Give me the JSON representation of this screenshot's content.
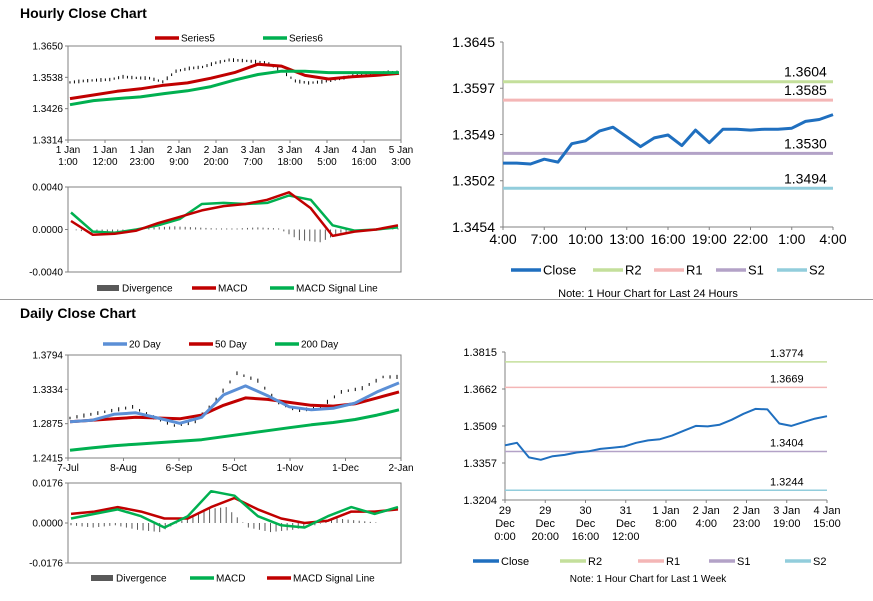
{
  "sections": {
    "hourly_title": "Hourly Close Chart",
    "daily_title": "Daily Close Chart"
  },
  "colors": {
    "series_red": "#c00000",
    "series_green": "#00b050",
    "close_blue": "#1f6fbf",
    "r2_green": "#c4df9b",
    "r1_pink": "#f4b6b6",
    "s1_purple": "#b3a2c7",
    "s2_cyan": "#92cddc",
    "divergence_gray": "#595959",
    "sma20_blue": "#5b8fd6"
  },
  "chart_data": [
    {
      "id": "hourly_price",
      "type": "line",
      "ylim": [
        1.3314,
        1.365
      ],
      "y_ticks": [
        "1.3650",
        "1.3538",
        "1.3426",
        "1.3314"
      ],
      "x_ticks": [
        [
          "1 Jan",
          "1:00"
        ],
        [
          "1 Jan",
          "12:00"
        ],
        [
          "1 Jan",
          "23:00"
        ],
        [
          "2 Jan",
          "9:00"
        ],
        [
          "2 Jan",
          "20:00"
        ],
        [
          "3 Jan",
          "7:00"
        ],
        [
          "3 Jan",
          "18:00"
        ],
        [
          "4 Jan",
          "5:00"
        ],
        [
          "4 Jan",
          "16:00"
        ],
        [
          "5 Jan",
          "3:00"
        ]
      ],
      "series": [
        {
          "name": "Series5",
          "color": "#c00000",
          "values": [
            1.3462,
            1.3475,
            1.3488,
            1.3497,
            1.351,
            1.3518,
            1.3535,
            1.3555,
            1.3585,
            1.3578,
            1.3545,
            1.3532,
            1.354,
            1.3545,
            1.3552
          ]
        },
        {
          "name": "Series6",
          "color": "#00b050",
          "values": [
            1.344,
            1.3455,
            1.3462,
            1.3468,
            1.348,
            1.349,
            1.3505,
            1.3528,
            1.3548,
            1.356,
            1.356,
            1.3555,
            1.3555,
            1.3555,
            1.3555
          ]
        }
      ],
      "candles": [
        1.352,
        1.3525,
        1.3528,
        1.353,
        1.354,
        1.3536,
        1.3535,
        1.3522,
        1.356,
        1.357,
        1.3575,
        1.359,
        1.36,
        1.3598,
        1.3594,
        1.3588,
        1.356,
        1.3525,
        1.3518,
        1.3522,
        1.353,
        1.354,
        1.355,
        1.3552,
        1.3556
      ]
    },
    {
      "id": "hourly_macd",
      "type": "line",
      "ylim": [
        -0.004,
        0.004
      ],
      "y_ticks": [
        "0.0040",
        "0.0000",
        "-0.0040"
      ],
      "series": [
        {
          "name": "Divergence",
          "color": "#595959",
          "values": [
            0.0,
            -0.0003,
            -0.0002,
            -0.0001,
            0.0002,
            0.0003,
            0.0002,
            0.0001,
            0.0001,
            0.0002,
            0.0001,
            -0.001,
            -0.0012,
            -0.0003,
            0.0,
            0.0001
          ]
        },
        {
          "name": "MACD",
          "color": "#c00000",
          "values": [
            0.0008,
            -0.0005,
            -0.0004,
            -0.0001,
            0.0006,
            0.0012,
            0.0018,
            0.0022,
            0.0024,
            0.0028,
            0.0035,
            0.002,
            -0.0006,
            -0.0002,
            0.0,
            0.0004
          ]
        },
        {
          "name": "MACD Signal Line",
          "color": "#00b050",
          "values": [
            0.0016,
            -0.0002,
            -0.0003,
            0.0,
            0.0004,
            0.001,
            0.0024,
            0.0025,
            0.0024,
            0.0025,
            0.0032,
            0.0028,
            0.0004,
            -0.0001,
            0.0,
            0.0002
          ]
        }
      ]
    },
    {
      "id": "hourly_sr",
      "type": "line",
      "ylim": [
        1.3454,
        1.3645
      ],
      "y_ticks": [
        "1.3645",
        "1.3597",
        "1.3549",
        "1.3502",
        "1.3454"
      ],
      "x_ticks": [
        "4:00",
        "7:00",
        "10:00",
        "13:00",
        "16:00",
        "19:00",
        "22:00",
        "1:00",
        "4:00"
      ],
      "levels": [
        {
          "name": "R2",
          "value": 1.3604,
          "label": "1.3604",
          "color": "#c4df9b"
        },
        {
          "name": "R1",
          "value": 1.3585,
          "label": "1.3585",
          "color": "#f4b6b6"
        },
        {
          "name": "S1",
          "value": 1.353,
          "label": "1.3530",
          "color": "#b3a2c7"
        },
        {
          "name": "S2",
          "value": 1.3494,
          "label": "1.3494",
          "color": "#92cddc"
        }
      ],
      "close": [
        1.352,
        1.352,
        1.3519,
        1.3524,
        1.3521,
        1.354,
        1.3543,
        1.3553,
        1.3557,
        1.3547,
        1.3537,
        1.3546,
        1.3549,
        1.3538,
        1.3554,
        1.3541,
        1.3555,
        1.3555,
        1.3554,
        1.3555,
        1.3555,
        1.3556,
        1.3563,
        1.3565,
        1.357
      ]
    },
    {
      "id": "daily_price",
      "type": "line",
      "ylim": [
        1.2415,
        1.3794
      ],
      "y_ticks": [
        "1.3794",
        "1.3334",
        "1.2875",
        "1.2415"
      ],
      "x_ticks": [
        "7-Jul",
        "8-Aug",
        "6-Sep",
        "5-Oct",
        "1-Nov",
        "1-Dec",
        "2-Jan"
      ],
      "series": [
        {
          "name": "20 Day",
          "color": "#5b8fd6",
          "values": [
            1.29,
            1.292,
            1.3,
            1.302,
            1.295,
            1.288,
            1.296,
            1.326,
            1.338,
            1.325,
            1.31,
            1.306,
            1.308,
            1.315,
            1.33,
            1.342
          ]
        },
        {
          "name": "50 Day",
          "color": "#c00000",
          "values": [
            1.29,
            1.292,
            1.294,
            1.296,
            1.295,
            1.294,
            1.299,
            1.312,
            1.322,
            1.32,
            1.316,
            1.312,
            1.311,
            1.314,
            1.322,
            1.33
          ]
        },
        {
          "name": "200 Day",
          "color": "#00b050",
          "values": [
            1.252,
            1.255,
            1.258,
            1.26,
            1.262,
            1.264,
            1.266,
            1.27,
            1.274,
            1.278,
            1.282,
            1.286,
            1.289,
            1.293,
            1.299,
            1.306
          ]
        }
      ],
      "candles": [
        1.295,
        1.3,
        1.305,
        1.31,
        1.296,
        1.285,
        1.29,
        1.32,
        1.355,
        1.345,
        1.315,
        1.305,
        1.31,
        1.33,
        1.335,
        1.35
      ]
    },
    {
      "id": "daily_macd",
      "type": "line",
      "ylim": [
        -0.0176,
        0.0176
      ],
      "y_ticks": [
        "0.0176",
        "0.0000",
        "-0.0176"
      ],
      "series": [
        {
          "name": "Divergence",
          "color": "#595959",
          "values": [
            -0.001,
            -0.002,
            -0.001,
            -0.003,
            -0.004,
            0.001,
            0.006,
            0.007,
            -0.002,
            -0.004,
            -0.003,
            -0.001,
            0.002,
            0.001,
            0.0
          ]
        },
        {
          "name": "MACD",
          "color": "#00b050",
          "values": [
            0.002,
            0.004,
            0.006,
            0.003,
            -0.002,
            0.003,
            0.014,
            0.012,
            0.003,
            -0.001,
            -0.002,
            0.003,
            0.007,
            0.004,
            0.007
          ]
        },
        {
          "name": "MACD Signal Line",
          "color": "#c00000",
          "values": [
            0.004,
            0.005,
            0.007,
            0.005,
            0.002,
            0.002,
            0.007,
            0.011,
            0.006,
            0.002,
            0.0,
            0.001,
            0.005,
            0.005,
            0.006
          ]
        }
      ]
    },
    {
      "id": "daily_sr",
      "type": "line",
      "ylim": [
        1.3204,
        1.3815
      ],
      "y_ticks": [
        "1.3815",
        "1.3662",
        "1.3509",
        "1.3357",
        "1.3204"
      ],
      "x_ticks": [
        [
          "29",
          "Dec",
          "0:00"
        ],
        [
          "29",
          "Dec",
          "20:00"
        ],
        [
          "30",
          "Dec",
          "16:00"
        ],
        [
          "31",
          "Dec",
          "12:00"
        ],
        [
          "1 Jan",
          "8:00"
        ],
        [
          "2 Jan",
          "4:00"
        ],
        [
          "2 Jan",
          "23:00"
        ],
        [
          "3 Jan",
          "19:00"
        ],
        [
          "4 Jan",
          "15:00"
        ]
      ],
      "levels": [
        {
          "name": "R2",
          "value": 1.3774,
          "label": "1.3774",
          "color": "#c4df9b"
        },
        {
          "name": "R1",
          "value": 1.3669,
          "label": "1.3669",
          "color": "#f4b6b6"
        },
        {
          "name": "S1",
          "value": 1.3404,
          "label": "1.3404",
          "color": "#b3a2c7"
        },
        {
          "name": "S2",
          "value": 1.3244,
          "label": "1.3244",
          "color": "#92cddc"
        }
      ],
      "close": [
        1.343,
        1.344,
        1.338,
        1.337,
        1.3385,
        1.339,
        1.34,
        1.3405,
        1.3415,
        1.342,
        1.3425,
        1.344,
        1.345,
        1.3455,
        1.347,
        1.349,
        1.351,
        1.3508,
        1.3515,
        1.3535,
        1.356,
        1.358,
        1.3578,
        1.352,
        1.351,
        1.3525,
        1.354,
        1.355
      ]
    }
  ],
  "legends": {
    "hourly_price": [
      "Series5",
      "Series6"
    ],
    "hourly_macd": [
      "Divergence",
      "MACD",
      "MACD Signal Line"
    ],
    "hourly_sr": [
      "Close",
      "R2",
      "R1",
      "S1",
      "S2"
    ],
    "hourly_sr_note": "Note: 1 Hour Chart for Last 24 Hours",
    "daily_price": [
      "20 Day",
      "50 Day",
      "200 Day"
    ],
    "daily_macd": [
      "Divergence",
      "MACD",
      "MACD Signal Line"
    ],
    "daily_sr": [
      "Close",
      "R2",
      "R1",
      "S1",
      "S2"
    ],
    "daily_sr_note": "Note: 1 Hour Chart for Last 1 Week"
  }
}
